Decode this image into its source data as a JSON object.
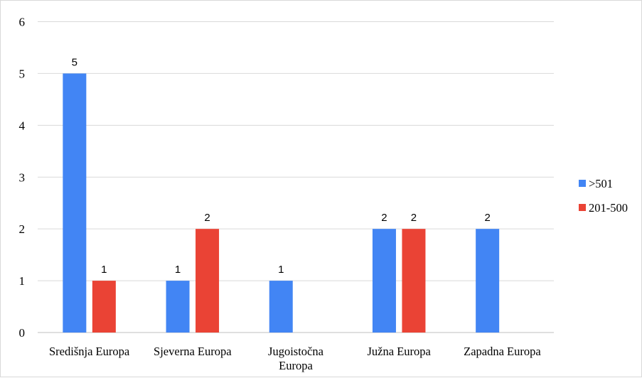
{
  "chart_data": {
    "type": "bar",
    "title": "",
    "xlabel": "",
    "ylabel": "",
    "categories": [
      [
        "Središnja Europa"
      ],
      [
        "Sjeverna Europa"
      ],
      [
        "Jugoistočna",
        "Europa"
      ],
      [
        "Južna Europa"
      ],
      [
        "Zapadna Europa"
      ]
    ],
    "series": [
      {
        "name": ">501",
        "color": "#4285f4",
        "values": [
          5,
          1,
          1,
          2,
          2
        ]
      },
      {
        "name": "201-500",
        "color": "#ea4335",
        "values": [
          1,
          2,
          null,
          2,
          null
        ]
      }
    ],
    "ylim": [
      0,
      6
    ],
    "yticks": [
      0,
      1,
      2,
      3,
      4,
      5,
      6
    ],
    "grid": true,
    "legend_position": "right",
    "data_labels": true
  }
}
